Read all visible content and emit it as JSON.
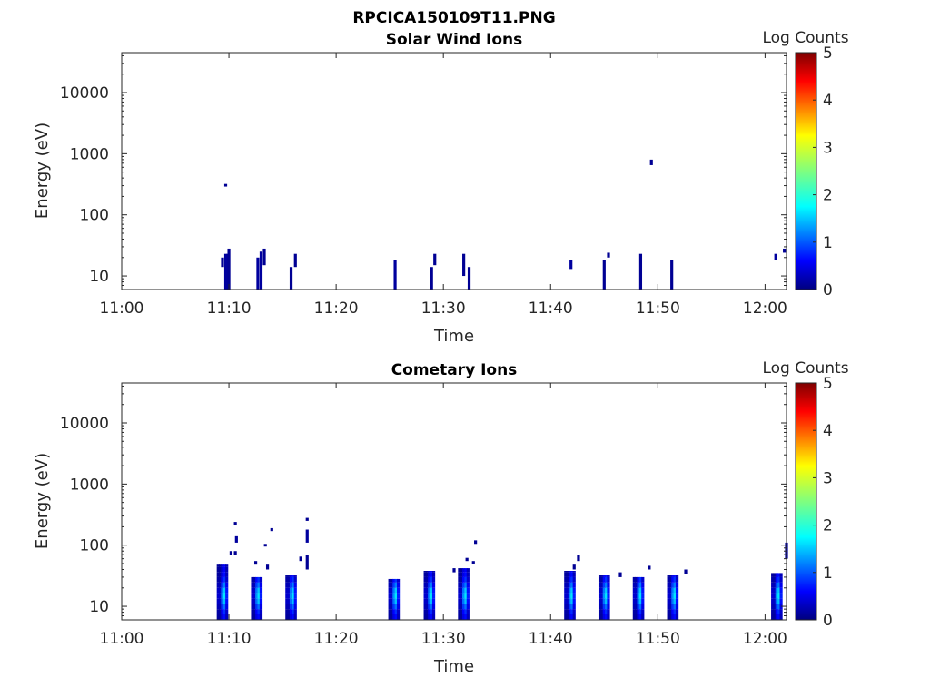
{
  "figure": {
    "title": "RPCICA150109T11.PNG"
  },
  "chart_data": [
    {
      "type": "heatmap",
      "title": "Solar Wind Ions",
      "xlabel": "Time",
      "ylabel": "Energy (eV)",
      "y_scale": "log",
      "xlim": [
        "11:00",
        "12:02"
      ],
      "ylim": [
        6,
        45000
      ],
      "x_ticks": [
        "11:00",
        "11:10",
        "11:20",
        "11:30",
        "11:40",
        "11:50",
        "12:00"
      ],
      "y_ticks": [
        "10",
        "100",
        "1000",
        "10000"
      ],
      "colorbar": {
        "label": "Log Counts",
        "range": [
          0,
          5
        ],
        "ticks": [
          "0",
          "1",
          "2",
          "3",
          "4",
          "5"
        ],
        "colormap": "jet"
      },
      "cells": [
        {
          "t": "11:09.4",
          "e": [
            14,
            20
          ],
          "v": 0.1
        },
        {
          "t": "11:09.7",
          "e": [
            6,
            23
          ],
          "v": 0.15
        },
        {
          "t": "11:09.9",
          "e": [
            6,
            23
          ],
          "v": 0.15
        },
        {
          "t": "11:10.0",
          "e": [
            6,
            28
          ],
          "v": 0.1
        },
        {
          "t": "11:09.7",
          "e": [
            290,
            320
          ],
          "v": 0.1
        },
        {
          "t": "11:12.7",
          "e": [
            6,
            20
          ],
          "v": 0.15
        },
        {
          "t": "11:13.0",
          "e": [
            6,
            25
          ],
          "v": 0.15
        },
        {
          "t": "11:13.3",
          "e": [
            15,
            28
          ],
          "v": 0.1
        },
        {
          "t": "11:15.8",
          "e": [
            6,
            14
          ],
          "v": 0.1
        },
        {
          "t": "11:16.2",
          "e": [
            14,
            23
          ],
          "v": 0.1
        },
        {
          "t": "11:25.5",
          "e": [
            6,
            18
          ],
          "v": 0.15
        },
        {
          "t": "11:28.9",
          "e": [
            6,
            14
          ],
          "v": 0.1
        },
        {
          "t": "11:29.2",
          "e": [
            15,
            23
          ],
          "v": 0.1
        },
        {
          "t": "11:31.9",
          "e": [
            10,
            23
          ],
          "v": 0.1
        },
        {
          "t": "11:32.4",
          "e": [
            6,
            14
          ],
          "v": 0.1
        },
        {
          "t": "11:41.9",
          "e": [
            13,
            18
          ],
          "v": 0.15
        },
        {
          "t": "11:45.0",
          "e": [
            6,
            18
          ],
          "v": 0.1
        },
        {
          "t": "11:45.4",
          "e": [
            20,
            24
          ],
          "v": 0.1
        },
        {
          "t": "11:48.4",
          "e": [
            6,
            23
          ],
          "v": 0.1
        },
        {
          "t": "11:49.4",
          "e": [
            650,
            800
          ],
          "v": 0.1
        },
        {
          "t": "11:51.3",
          "e": [
            6,
            18
          ],
          "v": 0.1
        },
        {
          "t": "12:01.0",
          "e": [
            18,
            23
          ],
          "v": 0.15
        },
        {
          "t": "12:01.8",
          "e": [
            24,
            28
          ],
          "v": 0.1
        }
      ]
    },
    {
      "type": "heatmap",
      "title": "Cometary Ions",
      "xlabel": "Time",
      "ylabel": "Energy (eV)",
      "y_scale": "log",
      "xlim": [
        "11:00",
        "12:02"
      ],
      "ylim": [
        6,
        45000
      ],
      "x_ticks": [
        "11:00",
        "11:10",
        "11:20",
        "11:30",
        "11:40",
        "11:50",
        "12:00"
      ],
      "y_ticks": [
        "10",
        "100",
        "1000",
        "10000"
      ],
      "colorbar": {
        "label": "Log Counts",
        "range": [
          0,
          5
        ],
        "ticks": [
          "0",
          "1",
          "2",
          "3",
          "4",
          "5"
        ],
        "colormap": "jet"
      },
      "bursts": [
        {
          "t": "11:09.6",
          "top": 48
        },
        {
          "t": "11:12.8",
          "top": 30
        },
        {
          "t": "11:16.0",
          "top": 32
        },
        {
          "t": "11:25.6",
          "top": 28
        },
        {
          "t": "11:28.9",
          "top": 38
        },
        {
          "t": "11:32.1",
          "top": 42
        },
        {
          "t": "11:42.0",
          "top": 38
        },
        {
          "t": "11:45.2",
          "top": 32
        },
        {
          "t": "11:48.4",
          "top": 30
        },
        {
          "t": "11:51.6",
          "top": 32
        },
        {
          "t": "12:01.3",
          "top": 35
        }
      ],
      "cells": [
        {
          "t": "11:10.6",
          "e": [
            210,
            240
          ],
          "v": 0.1
        },
        {
          "t": "11:10.7",
          "e": [
            110,
            140
          ],
          "v": 0.15
        },
        {
          "t": "11:10.2",
          "e": [
            70,
            80
          ],
          "v": 0.1
        },
        {
          "t": "11:10.6",
          "e": [
            70,
            80
          ],
          "v": 0.1
        },
        {
          "t": "11:13.4",
          "e": [
            95,
            105
          ],
          "v": 0.1
        },
        {
          "t": "11:14.0",
          "e": [
            170,
            190
          ],
          "v": 0.1
        },
        {
          "t": "11:12.5",
          "e": [
            48,
            55
          ],
          "v": 0.1
        },
        {
          "t": "11:13.6",
          "e": [
            40,
            48
          ],
          "v": 0.1
        },
        {
          "t": "11:17.3",
          "e": [
            250,
            280
          ],
          "v": 0.1
        },
        {
          "t": "11:17.3",
          "e": [
            110,
            180
          ],
          "v": 0.15
        },
        {
          "t": "11:17.3",
          "e": [
            40,
            70
          ],
          "v": 0.1
        },
        {
          "t": "11:16.7",
          "e": [
            55,
            65
          ],
          "v": 0.1
        },
        {
          "t": "11:31.0",
          "e": [
            36,
            42
          ],
          "v": 0.1
        },
        {
          "t": "11:32.2",
          "e": [
            55,
            62
          ],
          "v": 0.1
        },
        {
          "t": "11:32.8",
          "e": [
            50,
            55
          ],
          "v": 0.1
        },
        {
          "t": "11:33.0",
          "e": [
            105,
            120
          ],
          "v": 0.1
        },
        {
          "t": "11:42.6",
          "e": [
            55,
            70
          ],
          "v": 0.1
        },
        {
          "t": "11:42.2",
          "e": [
            40,
            48
          ],
          "v": 0.1
        },
        {
          "t": "11:46.5",
          "e": [
            30,
            36
          ],
          "v": 0.1
        },
        {
          "t": "11:49.2",
          "e": [
            40,
            46
          ],
          "v": 0.1
        },
        {
          "t": "11:52.6",
          "e": [
            34,
            40
          ],
          "v": 0.1
        },
        {
          "t": "12:02.0",
          "e": [
            60,
            110
          ],
          "v": 0.15
        }
      ]
    }
  ]
}
